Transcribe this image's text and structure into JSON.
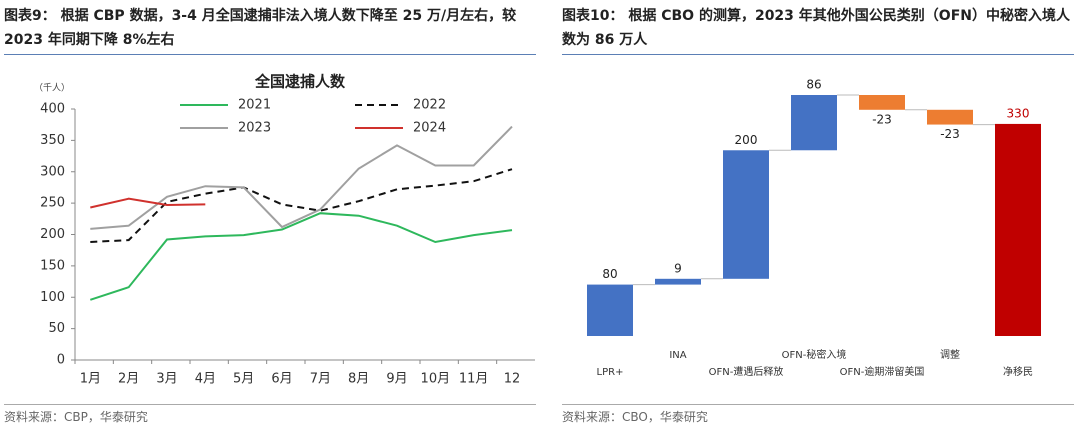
{
  "chart_data": [
    {
      "type": "line",
      "caption": "图表9： 根据 CBP 数据，3-4 月全国逮捕非法入境人数下降至 25 万/月左右，较 2023 年同期下降 8%左右",
      "title": "全国逮捕人数",
      "ylabel": "（千人）",
      "categories": [
        "1月",
        "2月",
        "3月",
        "4月",
        "5月",
        "6月",
        "7月",
        "8月",
        "9月",
        "10月",
        "11月",
        "12"
      ],
      "series": [
        {
          "name": "2021",
          "color": "#2eb85c",
          "style": "solid",
          "values": [
            96,
            116,
            192,
            197,
            199,
            208,
            234,
            230,
            214,
            188,
            199,
            207
          ]
        },
        {
          "name": "2022",
          "color": "#111111",
          "style": "dashed",
          "values": [
            188,
            191,
            252,
            265,
            275,
            248,
            238,
            253,
            272,
            278,
            285,
            304
          ]
        },
        {
          "name": "2023",
          "color": "#a0a0a0",
          "style": "solid",
          "values": [
            209,
            214,
            260,
            277,
            275,
            212,
            240,
            305,
            342,
            310,
            310,
            372
          ]
        },
        {
          "name": "2024",
          "color": "#d0312d",
          "style": "solid",
          "values": [
            243,
            257,
            247,
            248,
            null,
            null,
            null,
            null,
            null,
            null,
            null,
            null
          ]
        }
      ],
      "ylim": [
        0,
        400
      ],
      "yticks": [
        0,
        50,
        100,
        150,
        200,
        250,
        300,
        350,
        400
      ],
      "legend": "top",
      "source": "资料来源：CBP，华泰研究"
    },
    {
      "type": "waterfall",
      "caption": "图表10： 根据 CBO 的测算，2023 年其他外国公民类别（OFN）中秘密入境人数为 86 万人",
      "categories": [
        "LPR+",
        "INA",
        "OFN-遭遇后释放",
        "OFN-秘密入境",
        "OFN-逾期滞留美国",
        "调整",
        "净移民"
      ],
      "values": [
        80,
        9,
        200,
        86,
        -23,
        -23,
        330
      ],
      "measures": [
        "relative",
        "relative",
        "relative",
        "relative",
        "relative",
        "relative",
        "total"
      ],
      "color_increase": "#4472c4",
      "color_decrease": "#ed7d31",
      "color_total": "#c00000",
      "source": "资料来源：CBO，华泰研究"
    }
  ]
}
